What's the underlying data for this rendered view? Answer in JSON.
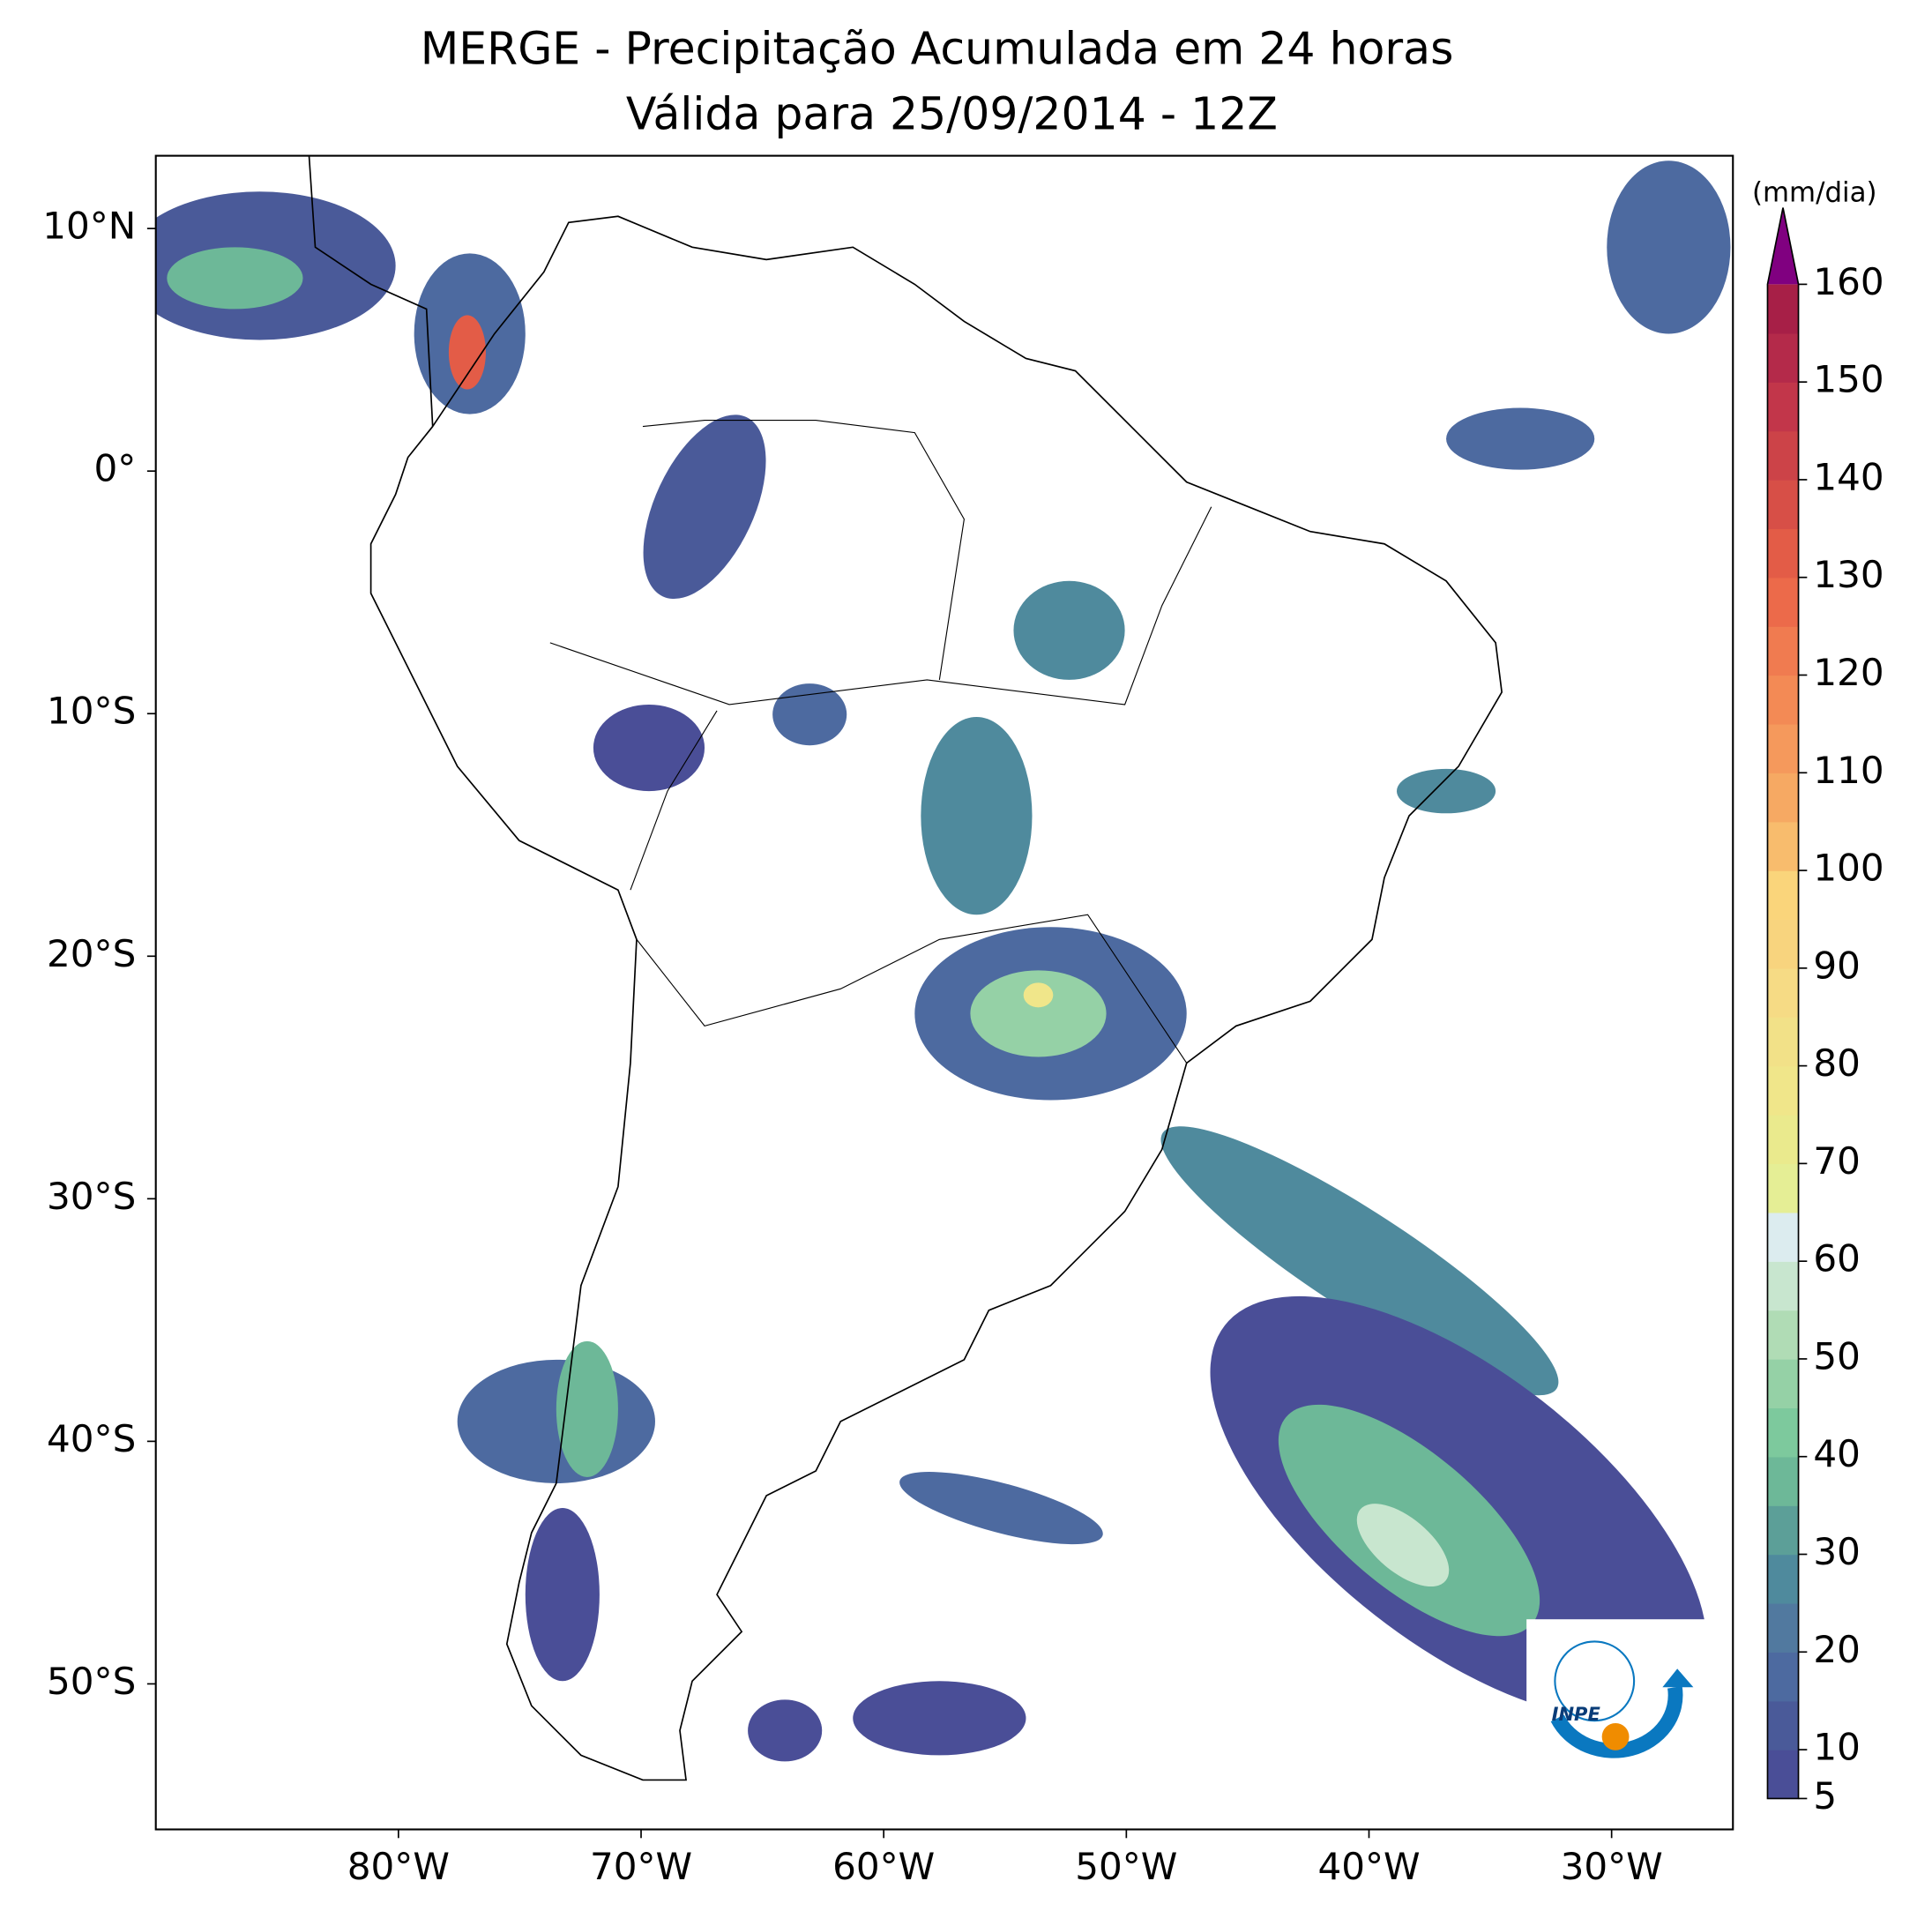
{
  "title": "MERGE - Precipitação Acumulada em 24 horas",
  "subtitle": "Válida para 25/09/2014 - 12Z",
  "map": {
    "xlim": [
      -90,
      -25
    ],
    "ylim": [
      -56,
      13
    ],
    "xticks": [
      {
        "value": -80,
        "label": "80°W"
      },
      {
        "value": -70,
        "label": "70°W"
      },
      {
        "value": -60,
        "label": "60°W"
      },
      {
        "value": -50,
        "label": "50°W"
      },
      {
        "value": -40,
        "label": "40°W"
      },
      {
        "value": -30,
        "label": "30°W"
      }
    ],
    "yticks": [
      {
        "value": 10,
        "label": "10°N"
      },
      {
        "value": 0,
        "label": "0°"
      },
      {
        "value": -10,
        "label": "10°S"
      },
      {
        "value": -20,
        "label": "20°S"
      },
      {
        "value": -30,
        "label": "30°S"
      },
      {
        "value": -40,
        "label": "40°S"
      },
      {
        "value": -50,
        "label": "50°S"
      }
    ]
  },
  "colorbar": {
    "label": "(mm/dia)",
    "lim": [
      5,
      160
    ],
    "ticks": [
      5,
      10,
      20,
      30,
      40,
      50,
      60,
      70,
      80,
      90,
      100,
      110,
      120,
      130,
      140,
      150,
      160
    ],
    "levels": [
      5,
      10,
      15,
      20,
      25,
      30,
      35,
      40,
      45,
      50,
      55,
      60,
      65,
      70,
      75,
      80,
      85,
      90,
      95,
      100,
      105,
      110,
      115,
      120,
      125,
      130,
      135,
      140,
      145,
      150,
      155,
      160
    ],
    "colors": [
      "#4a4e97",
      "#4a5a99",
      "#4d6aa0",
      "#51799f",
      "#4f8a9d",
      "#5c9f98",
      "#6db898",
      "#7dc99d",
      "#95d1a6",
      "#b0dcb5",
      "#c8e6cf",
      "#dcecef",
      "#e5ee95",
      "#eaea8d",
      "#f0e68a",
      "#f2e188",
      "#f6db85",
      "#f8d47e",
      "#fad57b",
      "#f8bc6d",
      "#f6a963",
      "#f5995c",
      "#f38a55",
      "#f07b50",
      "#ec6a4a",
      "#e35c47",
      "#d74f47",
      "#cc4348",
      "#c2364a",
      "#b42a4a",
      "#a71f47"
    ],
    "extend": "max",
    "extend_color": "#800080"
  },
  "logo": "INPE"
}
